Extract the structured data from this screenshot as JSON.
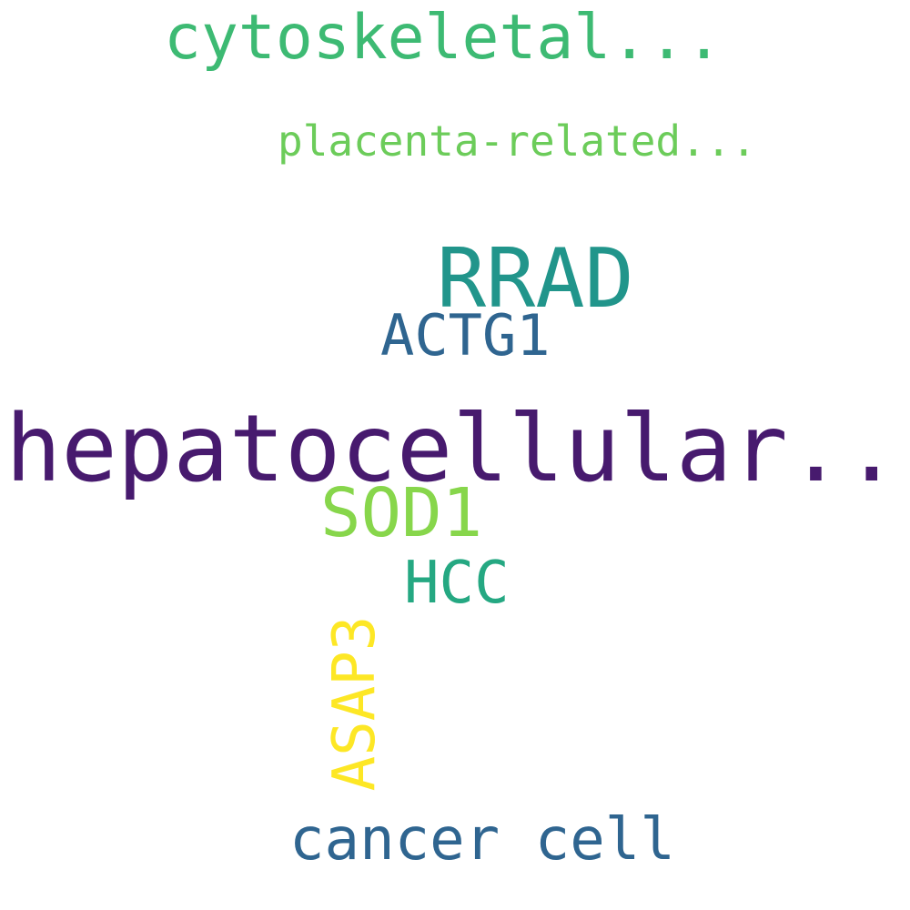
{
  "word_cloud": {
    "words": [
      {
        "id": "cytoskeletal",
        "text": "cytoskeletal...",
        "color": "#3dba73"
      },
      {
        "id": "placenta",
        "text": "placenta-related...",
        "color": "#6ccc5a"
      },
      {
        "id": "rrad",
        "text": "RRAD",
        "color": "#21958b"
      },
      {
        "id": "actg1",
        "text": "ACTG1",
        "color": "#2f6590"
      },
      {
        "id": "hepato",
        "text": "hepatocellular...",
        "color": "#471a6e"
      },
      {
        "id": "sod1",
        "text": "SOD1",
        "color": "#87d64b"
      },
      {
        "id": "hcc",
        "text": "HCC",
        "color": "#25a882"
      },
      {
        "id": "asap3",
        "text": "ASAP3",
        "color": "#fde725"
      },
      {
        "id": "cancer",
        "text": "cancer cell",
        "color": "#2f6590"
      }
    ]
  }
}
